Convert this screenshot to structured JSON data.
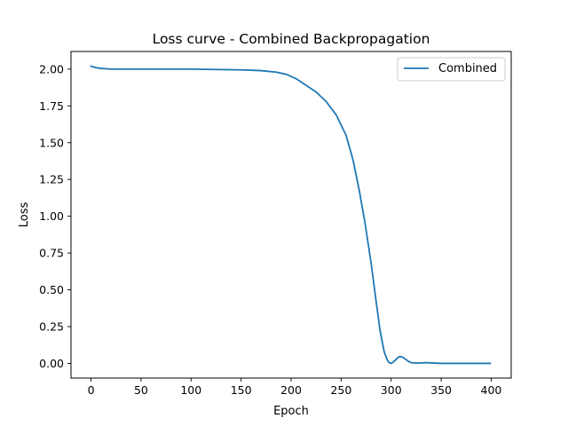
{
  "chart_data": {
    "type": "line",
    "title": "Loss curve - Combined Backpropagation",
    "xlabel": "Epoch",
    "ylabel": "Loss",
    "xlim": [
      -20,
      420
    ],
    "ylim": [
      -0.1,
      2.12
    ],
    "xticks": [
      0,
      50,
      100,
      150,
      200,
      250,
      300,
      350,
      400
    ],
    "yticks": [
      0.0,
      0.25,
      0.5,
      0.75,
      1.0,
      1.25,
      1.5,
      1.75,
      2.0
    ],
    "xtick_labels": [
      "0",
      "50",
      "100",
      "150",
      "200",
      "250",
      "300",
      "350",
      "400"
    ],
    "ytick_labels": [
      "0.00",
      "0.25",
      "0.50",
      "0.75",
      "1.00",
      "1.25",
      "1.50",
      "1.75",
      "2.00"
    ],
    "grid": false,
    "legend_position": "top-right",
    "series": [
      {
        "name": "Combined",
        "color": "#1f77b4",
        "x": [
          0,
          5,
          10,
          20,
          30,
          50,
          100,
          150,
          170,
          185,
          195,
          205,
          215,
          225,
          235,
          245,
          255,
          262,
          268,
          274,
          280,
          285,
          289,
          293,
          296,
          298,
          300,
          302,
          304,
          306,
          308,
          310,
          312,
          314,
          317,
          320,
          325,
          330,
          335,
          340,
          350,
          360,
          380,
          399
        ],
        "y": [
          2.02,
          2.01,
          2.005,
          2.0,
          2.0,
          2.0,
          2.0,
          1.995,
          1.99,
          1.98,
          1.965,
          1.935,
          1.89,
          1.845,
          1.78,
          1.69,
          1.55,
          1.38,
          1.18,
          0.95,
          0.68,
          0.42,
          0.22,
          0.08,
          0.025,
          0.005,
          0.0,
          0.008,
          0.02,
          0.035,
          0.045,
          0.045,
          0.04,
          0.03,
          0.015,
          0.005,
          0.002,
          0.003,
          0.005,
          0.003,
          0.0,
          0.0,
          0.0,
          0.0
        ]
      }
    ]
  }
}
